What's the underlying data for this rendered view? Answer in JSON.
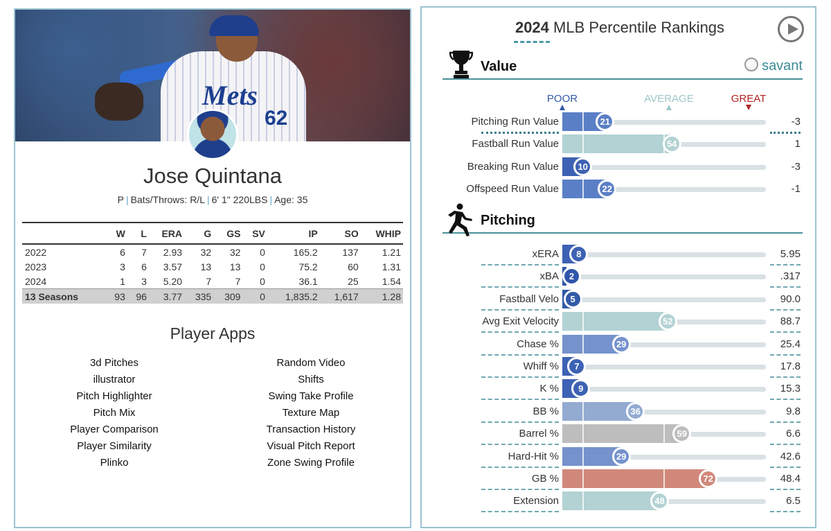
{
  "player": {
    "name": "Jose Quintana",
    "position": "P",
    "bats_throws": "Bats/Throws: R/L",
    "height_weight": "6' 1\" 220LBS",
    "age": "Age: 35"
  },
  "stats_table": {
    "headers": [
      "",
      "W",
      "L",
      "ERA",
      "G",
      "GS",
      "SV",
      "IP",
      "SO",
      "WHIP"
    ],
    "rows": [
      [
        "2022",
        "6",
        "7",
        "2.93",
        "32",
        "32",
        "0",
        "165.2",
        "137",
        "1.21"
      ],
      [
        "2023",
        "3",
        "6",
        "3.57",
        "13",
        "13",
        "0",
        "75.2",
        "60",
        "1.31"
      ],
      [
        "2024",
        "1",
        "3",
        "5.20",
        "7",
        "7",
        "0",
        "36.1",
        "25",
        "1.54"
      ]
    ],
    "career": [
      "13 Seasons",
      "93",
      "96",
      "3.77",
      "335",
      "309",
      "0",
      "1,835.2",
      "1,617",
      "1.28"
    ]
  },
  "apps": {
    "title": "Player Apps",
    "left": [
      "3d Pitches",
      "illustrator",
      "Pitch Highlighter",
      "Pitch Mix",
      "Player Comparison",
      "Player Similarity",
      "Plinko"
    ],
    "right": [
      "Random Video",
      "Shifts",
      "Swing Take Profile",
      "Texture Map",
      "Transaction History",
      "Visual Pitch Report",
      "Zone Swing Profile"
    ]
  },
  "rankings": {
    "title_year": "2024",
    "title_rest": "MLB Percentile Rankings",
    "brand": "savant",
    "scale": {
      "poor": "POOR",
      "average": "AVERAGE",
      "great": "GREAT"
    },
    "colors": {
      "poor": "#325aa8",
      "average": "#b8d6d8",
      "great": "#d0786a",
      "neutral": "#bdbdbd"
    },
    "sections": [
      {
        "label": "Value",
        "icon": "trophy-icon",
        "metrics": [
          {
            "label": "Pitching Run Value",
            "percentile": 21,
            "value": "-3",
            "color": "#5b7fc6"
          },
          {
            "label": "Fastball Run Value",
            "percentile": 54,
            "value": "1",
            "color": "#b3d2d3"
          },
          {
            "label": "Breaking Run Value",
            "percentile": 10,
            "value": "-3",
            "color": "#3d62b4"
          },
          {
            "label": "Offspeed Run Value",
            "percentile": 22,
            "value": "-1",
            "color": "#5b7fc6"
          }
        ]
      },
      {
        "label": "Pitching",
        "icon": "pitcher-icon",
        "metrics": [
          {
            "label": "xERA",
            "percentile": 8,
            "value": "5.95",
            "color": "#3d62b4"
          },
          {
            "label": "xBA",
            "percentile": 2,
            "value": ".317",
            "color": "#2f56aa"
          },
          {
            "label": "Fastball Velo",
            "percentile": 5,
            "value": "90.0",
            "color": "#325aa8"
          },
          {
            "label": "Avg Exit Velocity",
            "percentile": 52,
            "value": "88.7",
            "color": "#b3d2d3"
          },
          {
            "label": "Chase %",
            "percentile": 29,
            "value": "25.4",
            "color": "#7592cc"
          },
          {
            "label": "Whiff %",
            "percentile": 7,
            "value": "17.8",
            "color": "#3d62b4"
          },
          {
            "label": "K %",
            "percentile": 9,
            "value": "15.3",
            "color": "#3d62b4"
          },
          {
            "label": "BB %",
            "percentile": 36,
            "value": "9.8",
            "color": "#93abd1"
          },
          {
            "label": "Barrel %",
            "percentile": 59,
            "value": "6.6",
            "color": "#bdbdbd"
          },
          {
            "label": "Hard-Hit %",
            "percentile": 29,
            "value": "42.6",
            "color": "#7592cc"
          },
          {
            "label": "GB %",
            "percentile": 72,
            "value": "48.4",
            "color": "#d0887a"
          },
          {
            "label": "Extension",
            "percentile": 48,
            "value": "6.5",
            "color": "#b3d2d3"
          }
        ]
      }
    ]
  }
}
